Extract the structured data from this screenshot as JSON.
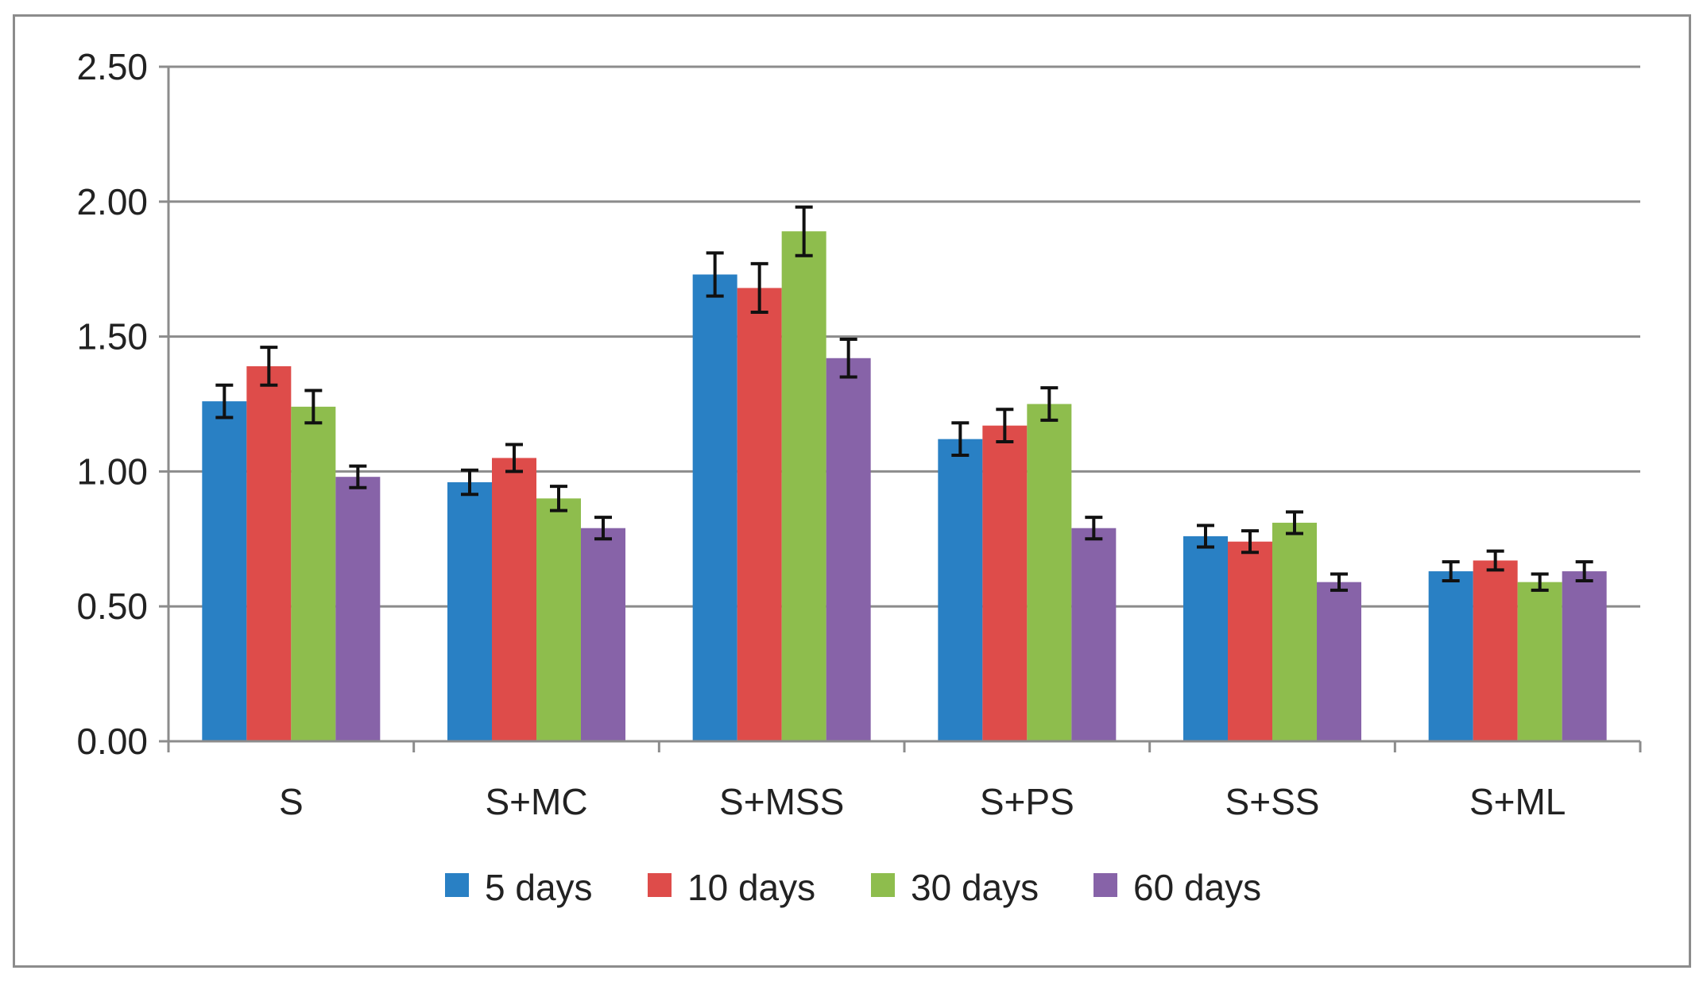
{
  "chart_data": {
    "type": "bar",
    "title": "",
    "xlabel": "",
    "ylabel": "",
    "ylim": [
      0,
      2.5
    ],
    "yticks": [
      "0.00",
      "0.50",
      "1.00",
      "1.50",
      "2.00",
      "2.50"
    ],
    "ytick_values": [
      0,
      0.5,
      1.0,
      1.5,
      2.0,
      2.5
    ],
    "grid": true,
    "legend_position": "bottom",
    "categories": [
      "S",
      "S+MC",
      "S+MSS",
      "S+PS",
      "S+SS",
      "S+ML"
    ],
    "series": [
      {
        "name": "5 days",
        "color": "#2980c4",
        "values": [
          1.26,
          0.96,
          1.73,
          1.12,
          0.76,
          0.63
        ],
        "errors": [
          0.06,
          0.045,
          0.08,
          0.06,
          0.04,
          0.035
        ]
      },
      {
        "name": "10 days",
        "color": "#de4c4a",
        "values": [
          1.39,
          1.05,
          1.68,
          1.17,
          0.74,
          0.67
        ],
        "errors": [
          0.07,
          0.05,
          0.09,
          0.06,
          0.04,
          0.035
        ]
      },
      {
        "name": "30 days",
        "color": "#8ebd4d",
        "values": [
          1.24,
          0.9,
          1.89,
          1.25,
          0.81,
          0.59
        ],
        "errors": [
          0.06,
          0.045,
          0.09,
          0.06,
          0.04,
          0.03
        ]
      },
      {
        "name": "60 days",
        "color": "#8763a8",
        "values": [
          0.98,
          0.79,
          1.42,
          0.79,
          0.59,
          0.63
        ],
        "errors": [
          0.04,
          0.04,
          0.07,
          0.04,
          0.03,
          0.035
        ]
      }
    ]
  }
}
